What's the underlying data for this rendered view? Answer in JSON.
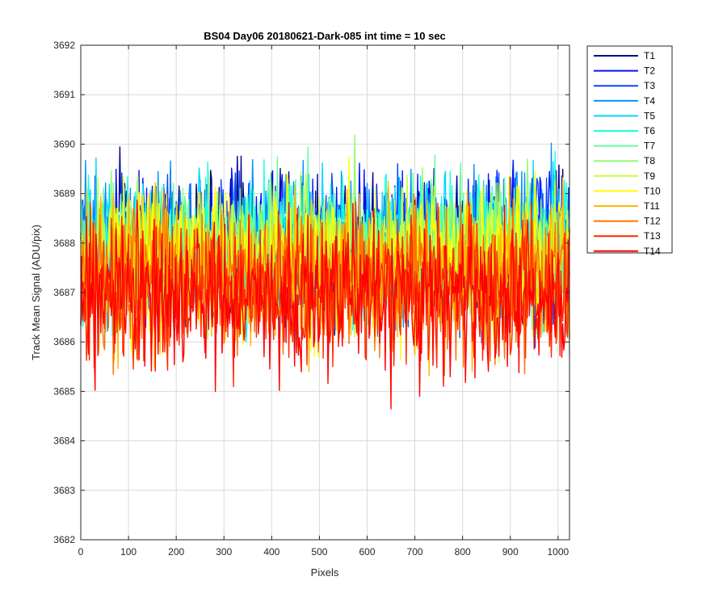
{
  "chart_data": {
    "type": "line",
    "title": "BS04 Day06 20180621-Dark-085 int time = 10 sec",
    "xlabel": "Pixels",
    "ylabel": "Track Mean Signal (ADU/pix)",
    "xlim": [
      0,
      1024
    ],
    "ylim": [
      3682,
      3692
    ],
    "xticks": [
      0,
      100,
      200,
      300,
      400,
      500,
      600,
      700,
      800,
      900,
      1000
    ],
    "yticks": [
      3682,
      3683,
      3684,
      3685,
      3686,
      3687,
      3688,
      3689,
      3690,
      3691,
      3692
    ],
    "grid": true,
    "legend_position": "outside-top-right",
    "series": [
      {
        "name": "T1",
        "color": "#00008f",
        "mean": 3688.1,
        "spread": 0.7
      },
      {
        "name": "T2",
        "color": "#0015ff",
        "mean": 3688.0,
        "spread": 0.7
      },
      {
        "name": "T3",
        "color": "#0047ff",
        "mean": 3687.9,
        "spread": 0.7
      },
      {
        "name": "T4",
        "color": "#008fff",
        "mean": 3687.9,
        "spread": 0.7
      },
      {
        "name": "T5",
        "color": "#00d6ff",
        "mean": 3687.9,
        "spread": 0.7
      },
      {
        "name": "T6",
        "color": "#1cffe3",
        "mean": 3687.9,
        "spread": 0.7
      },
      {
        "name": "T7",
        "color": "#63ff9c",
        "mean": 3687.8,
        "spread": 0.7
      },
      {
        "name": "T8",
        "color": "#8eff71",
        "mean": 3687.8,
        "spread": 0.7
      },
      {
        "name": "T9",
        "color": "#c7ff38",
        "mean": 3687.7,
        "spread": 0.7
      },
      {
        "name": "T10",
        "color": "#ffff00",
        "mean": 3687.6,
        "spread": 0.75
      },
      {
        "name": "T11",
        "color": "#ffb800",
        "mean": 3687.4,
        "spread": 0.75
      },
      {
        "name": "T12",
        "color": "#ff7100",
        "mean": 3687.2,
        "spread": 0.75
      },
      {
        "name": "T13",
        "color": "#ff2a00",
        "mean": 3687.0,
        "spread": 0.75
      },
      {
        "name": "T14",
        "color": "#ff0000",
        "mean": 3686.9,
        "spread": 0.75
      }
    ]
  }
}
